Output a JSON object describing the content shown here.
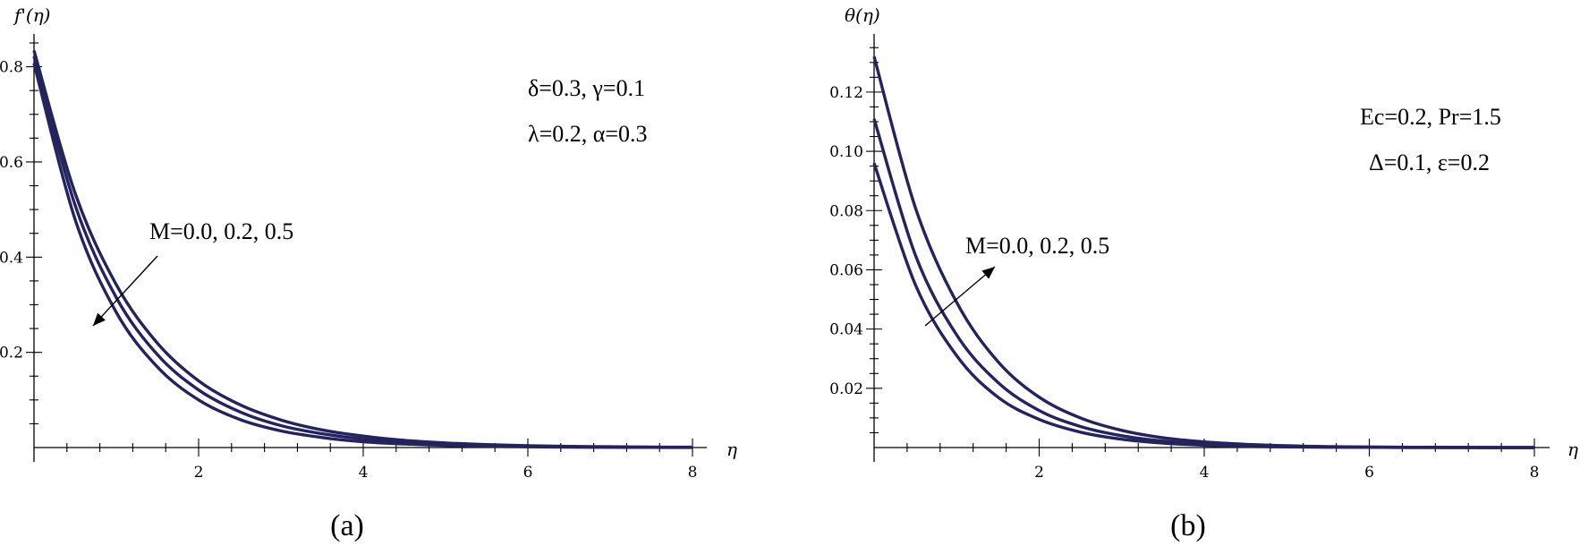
{
  "chart_data": [
    {
      "type": "line",
      "caption": "(a)",
      "ylabel": "f'(η)",
      "xlabel": "η",
      "xlim": [
        0,
        8.2
      ],
      "ylim": [
        0,
        0.865
      ],
      "xticks": [
        2,
        4,
        6,
        8
      ],
      "xtick_labels": [
        "2",
        "4",
        "6",
        "8"
      ],
      "yticks": [
        0.2,
        0.4,
        0.6,
        0.8
      ],
      "ytick_labels": [
        "0.2",
        "0.4",
        "0.6",
        "0.8"
      ],
      "parameters": [
        "δ=0.3, γ=0.1",
        "λ=0.2, α=0.3"
      ],
      "annotation": "M=0.0, 0.2, 0.5",
      "line_color": "#23235e",
      "x": [
        0,
        0.5,
        1,
        1.5,
        2,
        2.5,
        3,
        3.5,
        4,
        4.5,
        5,
        5.5,
        6,
        6.5,
        7,
        7.5,
        8
      ],
      "series": [
        {
          "values": [
            0.834,
            0.534,
            0.342,
            0.219,
            0.14,
            0.09,
            0.058,
            0.037,
            0.024,
            0.015,
            0.0096,
            0.0062,
            0.0039,
            0.0025,
            0.0016,
            0.001,
            0.0007
          ]
        },
        {
          "values": [
            0.822,
            0.509,
            0.315,
            0.195,
            0.121,
            0.075,
            0.046,
            0.029,
            0.018,
            0.011,
            0.0068,
            0.0042,
            0.0026,
            0.0016,
            0.001,
            0.0006,
            0.0004
          ]
        },
        {
          "values": [
            0.807,
            0.479,
            0.284,
            0.169,
            0.1,
            0.059,
            0.035,
            0.021,
            0.012,
            0.0074,
            0.0044,
            0.0026,
            0.0015,
            0.0009,
            0.0005,
            0.0003,
            0.0002
          ]
        }
      ]
    },
    {
      "type": "line",
      "caption": "(b)",
      "ylabel": "θ(η)",
      "xlabel": "η",
      "xlim": [
        0,
        8.2
      ],
      "ylim": [
        0,
        0.139
      ],
      "xticks": [
        2,
        4,
        6,
        8
      ],
      "xtick_labels": [
        "2",
        "4",
        "6",
        "8"
      ],
      "yticks": [
        0.02,
        0.04,
        0.06,
        0.08,
        0.1,
        0.12
      ],
      "ytick_labels": [
        "0.02",
        "0.04",
        "0.06",
        "0.08",
        "0.10",
        "0.12"
      ],
      "parameters": [
        "Ec=0.2, Pr=1.5",
        "Δ=0.1, ε=0.2"
      ],
      "annotation": "M=0.0, 0.2, 0.5",
      "line_color": "#23235e",
      "x": [
        0,
        0.5,
        1,
        1.5,
        2,
        2.5,
        3,
        3.5,
        4,
        4.5,
        5,
        5.5,
        6,
        6.5,
        7,
        7.5,
        8
      ],
      "series": [
        {
          "values": [
            0.096,
            0.055,
            0.031,
            0.017,
            0.0095,
            0.0052,
            0.0028,
            0.0015,
            0.0008,
            0.0004,
            0.0002,
            0.0001,
            0.0001,
            0,
            0,
            0,
            0
          ]
        },
        {
          "values": [
            0.111,
            0.065,
            0.038,
            0.022,
            0.0125,
            0.0071,
            0.004,
            0.0022,
            0.0012,
            0.0007,
            0.0004,
            0.0002,
            0.0001,
            0.0001,
            0,
            0,
            0
          ]
        },
        {
          "values": [
            0.132,
            0.081,
            0.049,
            0.029,
            0.017,
            0.01,
            0.0058,
            0.0033,
            0.0019,
            0.0011,
            0.0006,
            0.0003,
            0.0002,
            0.0001,
            0.0001,
            0,
            0
          ]
        }
      ]
    }
  ]
}
